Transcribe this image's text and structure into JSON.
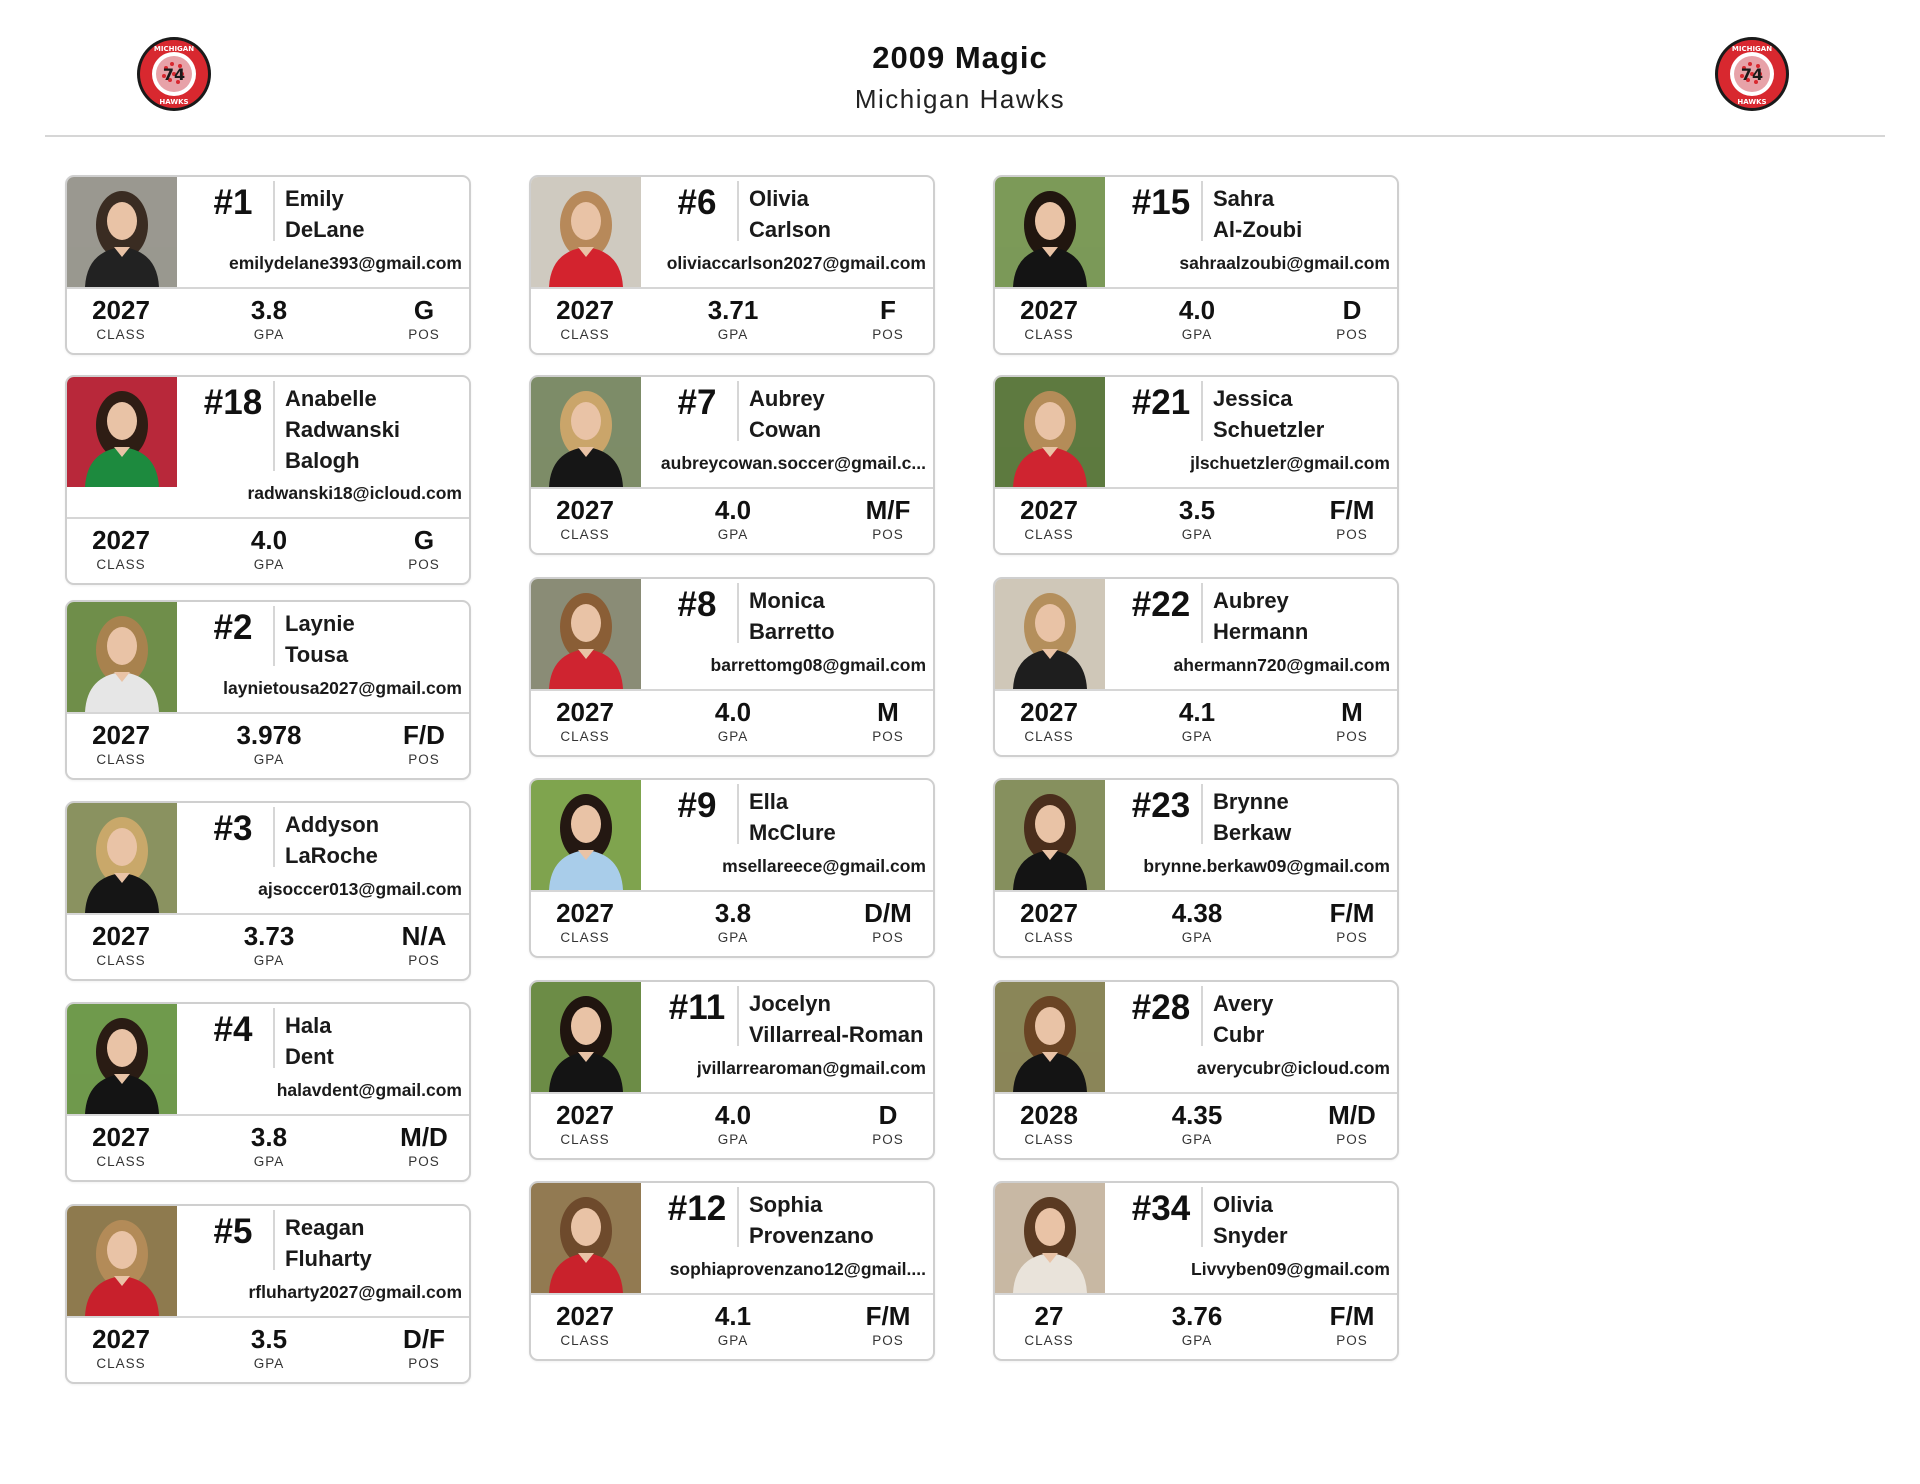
{
  "header": {
    "title": "2009 Magic",
    "subtitle": "Michigan Hawks",
    "logo_text_top": "MICHIGAN",
    "logo_text_bottom": "HAWKS",
    "logo_number": "74",
    "brand_red": "#d8282f"
  },
  "stat_labels": {
    "class": "CLASS",
    "gpa": "GPA",
    "pos": "POS"
  },
  "players": [
    {
      "number": "#1",
      "name": "Emily\nDeLane",
      "email": "emilydelane393@gmail.com",
      "class": "2027",
      "gpa": "3.8",
      "pos": "G",
      "photo": {
        "bg": "#9a9890",
        "jersey": "#222222",
        "hair": "#3a2c22"
      }
    },
    {
      "number": "#18",
      "name": "Anabelle\nRadwanski\nBalogh",
      "email": "radwanski18@icloud.com",
      "class": "2027",
      "gpa": "4.0",
      "pos": "G",
      "photo": {
        "bg": "#b8283a",
        "jersey": "#1d8a3e",
        "hair": "#2e1d14"
      }
    },
    {
      "number": "#2",
      "name": "Laynie\nTousa",
      "email": "laynietousa2027@gmail.com",
      "class": "2027",
      "gpa": "3.978",
      "pos": "F/D",
      "photo": {
        "bg": "#6f8e4a",
        "jersey": "#e6e6e6",
        "hair": "#a8824e"
      }
    },
    {
      "number": "#3",
      "name": "Addyson\nLaRoche",
      "email": "ajsoccer013@gmail.com",
      "class": "2027",
      "gpa": "3.73",
      "pos": "N/A",
      "photo": {
        "bg": "#8a9260",
        "jersey": "#151515",
        "hair": "#c9a86a"
      }
    },
    {
      "number": "#4",
      "name": "Hala\nDent",
      "email": "halavdent@gmail.com",
      "class": "2027",
      "gpa": "3.8",
      "pos": "M/D",
      "photo": {
        "bg": "#6f9a4c",
        "jersey": "#141414",
        "hair": "#2a1c14"
      }
    },
    {
      "number": "#5",
      "name": "Reagan\nFluharty",
      "email": "rfluharty2027@gmail.com",
      "class": "2027",
      "gpa": "3.5",
      "pos": "D/F",
      "photo": {
        "bg": "#8e7a4e",
        "jersey": "#c8202c",
        "hair": "#b38b58"
      }
    },
    {
      "number": "#6",
      "name": "Olivia\nCarlson",
      "email": "oliviaccarlson2027@gmail.com",
      "class": "2027",
      "gpa": "3.71",
      "pos": "F",
      "photo": {
        "bg": "#cfcac0",
        "jersey": "#d3232e",
        "hair": "#b7895a"
      }
    },
    {
      "number": "#7",
      "name": "Aubrey\nCowan",
      "email": "aubreycowan.soccer@gmail.c...",
      "class": "2027",
      "gpa": "4.0",
      "pos": "M/F",
      "photo": {
        "bg": "#7d8c68",
        "jersey": "#161616",
        "hair": "#caa56a"
      }
    },
    {
      "number": "#8",
      "name": "Monica\nBarretto",
      "email": "barrettomg08@gmail.com",
      "class": "2027",
      "gpa": "4.0",
      "pos": "M",
      "photo": {
        "bg": "#8a8c76",
        "jersey": "#cf2430",
        "hair": "#8a5e36"
      }
    },
    {
      "number": "#9",
      "name": "Ella\nMcClure",
      "email": "msellareece@gmail.com",
      "class": "2027",
      "gpa": "3.8",
      "pos": "D/M",
      "photo": {
        "bg": "#7fa44e",
        "jersey": "#a9cdea",
        "hair": "#241812"
      }
    },
    {
      "number": "#11",
      "name": "Jocelyn\nVillarreal-Roman",
      "email": "jvillarrearoman@gmail.com",
      "class": "2027",
      "gpa": "4.0",
      "pos": "D",
      "photo": {
        "bg": "#6c8c46",
        "jersey": "#141414",
        "hair": "#20150f"
      }
    },
    {
      "number": "#12",
      "name": "Sophia\nProvenzano",
      "email": "sophiaprovenzano12@gmail....",
      "class": "2027",
      "gpa": "4.1",
      "pos": "F/M",
      "photo": {
        "bg": "#927a52",
        "jersey": "#c9222c",
        "hair": "#6e4a2c"
      }
    },
    {
      "number": "#15",
      "name": "Sahra\nAl-Zoubi",
      "email": "sahraalzoubi@gmail.com",
      "class": "2027",
      "gpa": "4.0",
      "pos": "D",
      "photo": {
        "bg": "#7c9a58",
        "jersey": "#141414",
        "hair": "#21160f"
      }
    },
    {
      "number": "#21",
      "name": "Jessica\nSchuetzler",
      "email": "jlschuetzler@gmail.com",
      "class": "2027",
      "gpa": "3.5",
      "pos": "F/M",
      "photo": {
        "bg": "#5e7a40",
        "jersey": "#cf2430",
        "hair": "#b48c58"
      }
    },
    {
      "number": "#22",
      "name": "Aubrey\nHermann",
      "email": "ahermann720@gmail.com",
      "class": "2027",
      "gpa": "4.1",
      "pos": "M",
      "photo": {
        "bg": "#cfc7b8",
        "jersey": "#1e1e1e",
        "hair": "#b48f5c"
      }
    },
    {
      "number": "#23",
      "name": "Brynne\nBerkaw",
      "email": "brynne.berkaw09@gmail.com",
      "class": "2027",
      "gpa": "4.38",
      "pos": "F/M",
      "photo": {
        "bg": "#86905e",
        "jersey": "#141414",
        "hair": "#4a2e1c"
      }
    },
    {
      "number": "#28",
      "name": "Avery\nCubr",
      "email": "averycubr@icloud.com",
      "class": "2028",
      "gpa": "4.35",
      "pos": "M/D",
      "photo": {
        "bg": "#8a8658",
        "jersey": "#141414",
        "hair": "#6a4424"
      }
    },
    {
      "number": "#34",
      "name": "Olivia\nSnyder",
      "email": "Livvyben09@gmail.com",
      "class": "27",
      "gpa": "3.76",
      "pos": "F/M",
      "photo": {
        "bg": "#c8b8a4",
        "jersey": "#e9e3da",
        "hair": "#5a3a22"
      }
    }
  ]
}
